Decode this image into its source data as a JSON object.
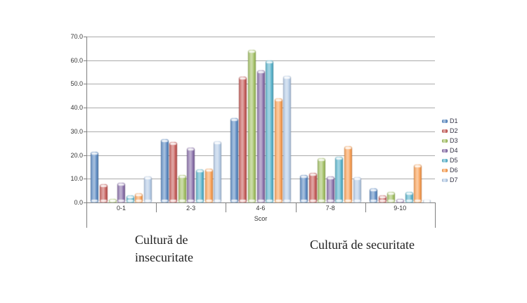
{
  "chart_data": {
    "type": "bar",
    "title": "",
    "xlabel": "Scor",
    "ylabel": "",
    "ylim": [
      0,
      70
    ],
    "ytick_step": 10,
    "ytick_labels": [
      "70.0",
      "60.0",
      "50.0",
      "40.0",
      "30.0",
      "20.0",
      "10.0",
      "0.0"
    ],
    "grid": true,
    "legend_position": "right",
    "categories": [
      "0-1",
      "2-3",
      "4-6",
      "7-8",
      "9-10"
    ],
    "series": [
      {
        "name": "D1",
        "color": "#4F81BD",
        "values": [
          21.3,
          26.6,
          35.5,
          11.6,
          6.0
        ]
      },
      {
        "name": "D2",
        "color": "#C0504D",
        "values": [
          7.7,
          25.4,
          53.2,
          12.4,
          2.9
        ]
      },
      {
        "name": "D3",
        "color": "#9BBB59",
        "values": [
          1.4,
          11.5,
          64.5,
          18.8,
          4.5
        ]
      },
      {
        "name": "D4",
        "color": "#8064A2",
        "values": [
          8.4,
          23.2,
          55.7,
          11.1,
          1.5
        ]
      },
      {
        "name": "D5",
        "color": "#4BACC6",
        "values": [
          3.0,
          13.9,
          59.8,
          19.4,
          4.5
        ]
      },
      {
        "name": "D6",
        "color": "#F79646",
        "values": [
          3.9,
          14.1,
          43.9,
          23.8,
          15.9
        ]
      },
      {
        "name": "D7",
        "color": "#AEC6E4",
        "values": [
          11.0,
          25.9,
          53.4,
          10.6,
          1.2
        ]
      }
    ],
    "annotations": [
      {
        "text_line1": "Cultură de",
        "text_line2": "insecuritate",
        "position": "below-left"
      },
      {
        "text_line1": "Cultură de securitate",
        "text_line2": "",
        "position": "below-right"
      }
    ]
  },
  "colors": {
    "gridline": "#ababab",
    "axis": "#7f7f7f",
    "tick_text": "#333333",
    "annotation_text": "#1f1f1f",
    "background": "#ffffff"
  }
}
